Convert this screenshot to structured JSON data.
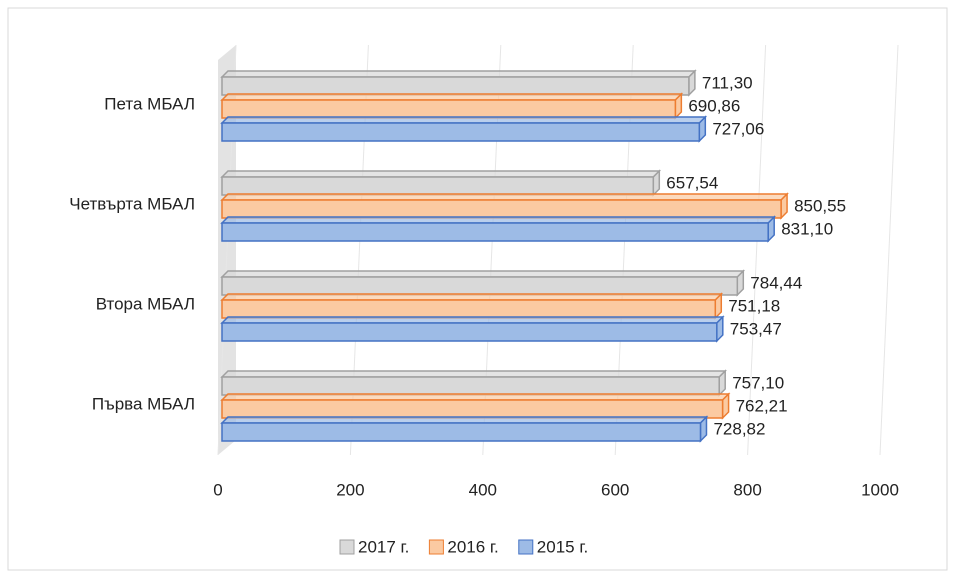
{
  "chart_data": {
    "type": "bar3d_horizontal",
    "categories": [
      "Пета МБАЛ",
      "Четвърта МБАЛ",
      "Втора МБАЛ",
      "Първа МБАЛ"
    ],
    "series": [
      {
        "name": "2017 г.",
        "color": "#d9d9d9",
        "edge": "#a0a0a0",
        "values": [
          711.3,
          657.54,
          784.44,
          757.1
        ],
        "value_labels": [
          "711,30",
          "657,54",
          "784,44",
          "757,10"
        ]
      },
      {
        "name": "2016 г.",
        "color": "#fbcaa2",
        "edge": "#ed7d31",
        "values": [
          690.86,
          850.55,
          751.18,
          762.21
        ],
        "value_labels": [
          "690,86",
          "850,55",
          "751,18",
          "762,21"
        ]
      },
      {
        "name": "2015 г.",
        "color": "#9dbbe6",
        "edge": "#4472c4",
        "values": [
          727.06,
          831.1,
          753.47,
          728.82
        ],
        "value_labels": [
          "727,06",
          "831,10",
          "753,47",
          "728,82"
        ]
      }
    ],
    "xlim": [
      0,
      1000
    ],
    "xticks": [
      0,
      200,
      400,
      600,
      800,
      1000
    ],
    "grid": true,
    "legend": "bottom"
  }
}
